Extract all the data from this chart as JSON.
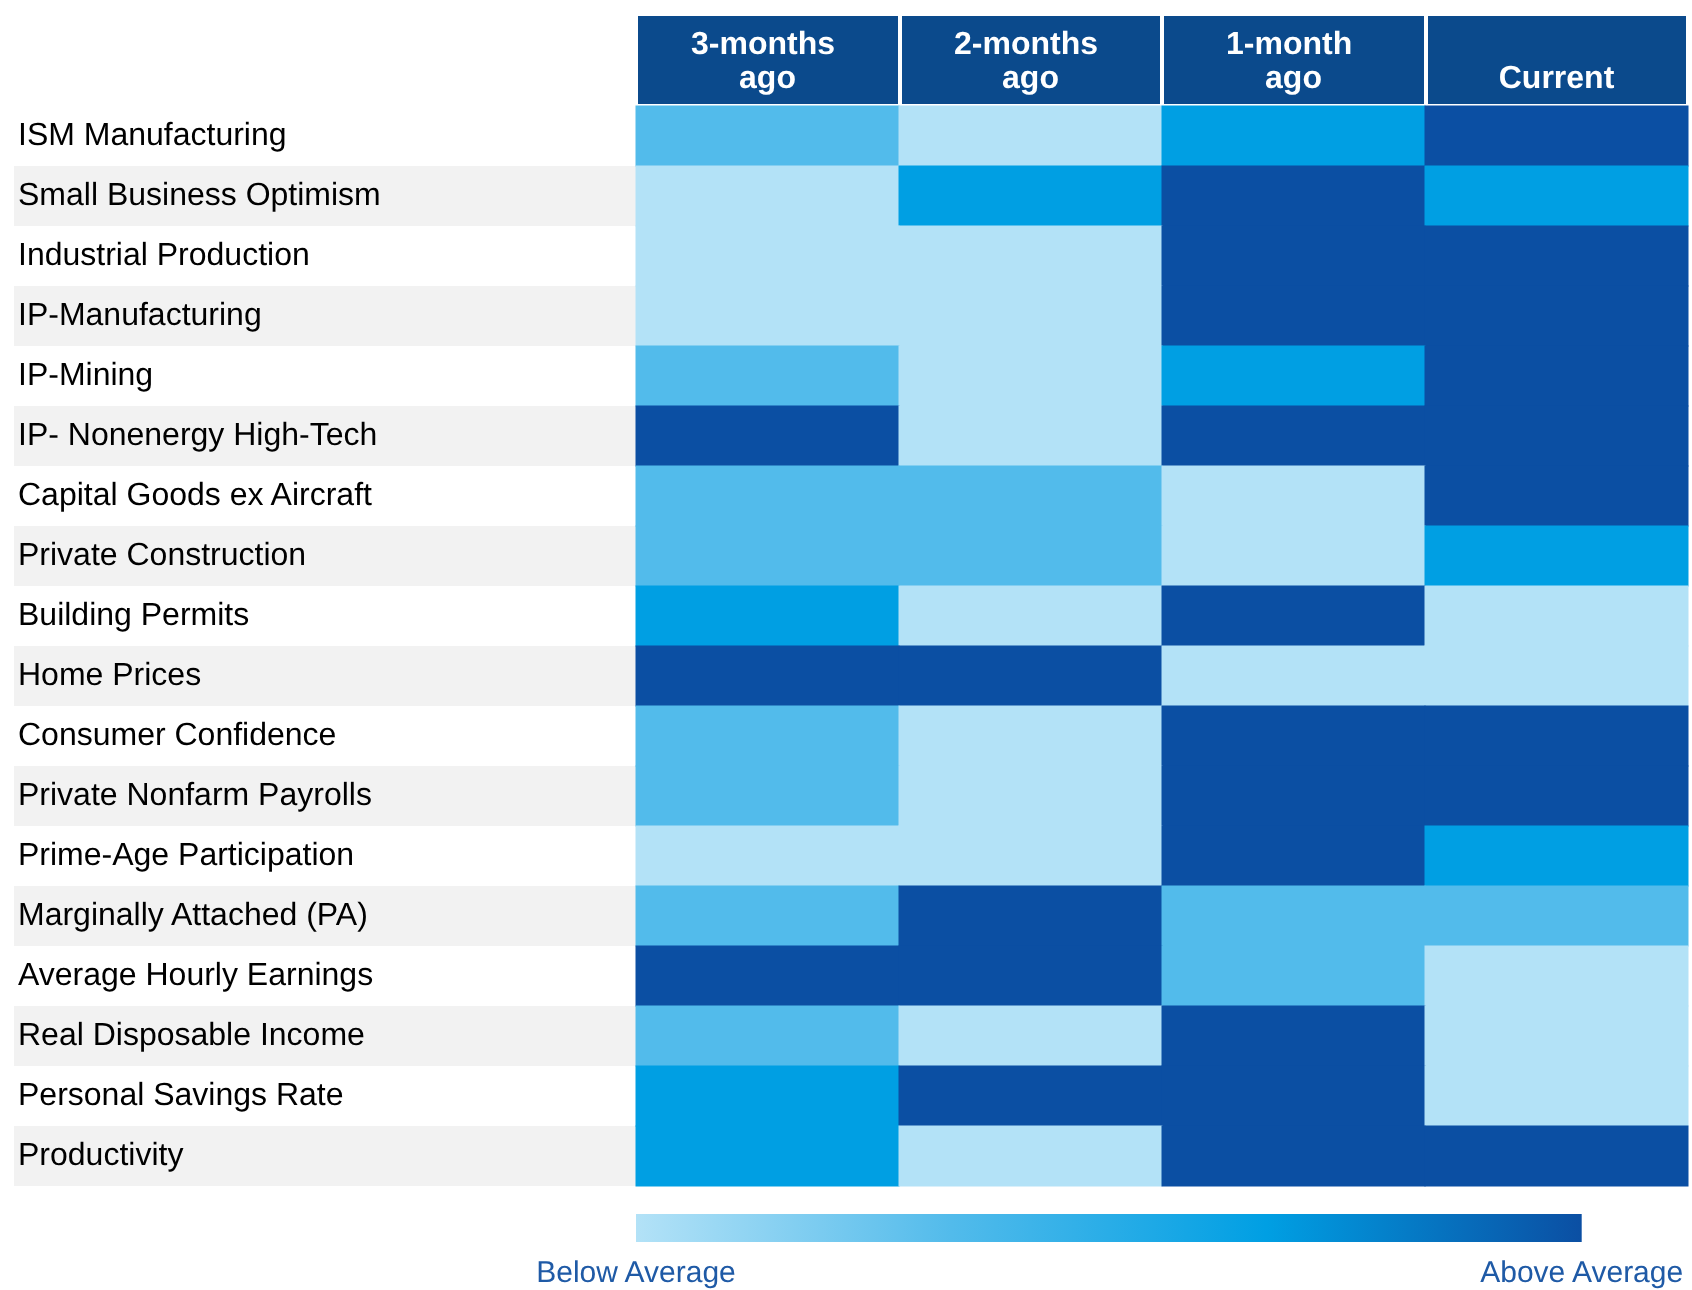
{
  "chart_data": {
    "type": "heatmap",
    "categories": [
      "3-months ago",
      "2-months ago",
      "1-month ago",
      "Current"
    ],
    "y_categories": [
      "ISM Manufacturing",
      "Small Business Optimism",
      "Industrial Production",
      "IP-Manufacturing",
      "IP-Mining",
      "IP- Nonenergy High-Tech",
      "Capital Goods ex Aircraft",
      "Private Construction",
      "Building Permits",
      "Home Prices",
      "Consumer Confidence",
      "Private Nonfarm Payrolls",
      "Prime-Age Participation",
      "Marginally Attached (PA)",
      "Average Hourly Earnings",
      "Real Disposable Income",
      "Personal Savings Rate",
      "Productivity"
    ],
    "cells": [
      [
        2,
        1,
        3,
        4
      ],
      [
        1,
        3,
        4,
        3
      ],
      [
        1,
        1,
        4,
        4
      ],
      [
        1,
        1,
        4,
        4
      ],
      [
        2,
        1,
        3,
        4
      ],
      [
        4,
        1,
        4,
        4
      ],
      [
        2,
        2,
        1,
        4
      ],
      [
        2,
        2,
        1,
        3
      ],
      [
        3,
        1,
        4,
        1
      ],
      [
        4,
        4,
        1,
        1
      ],
      [
        2,
        1,
        4,
        4
      ],
      [
        2,
        1,
        4,
        4
      ],
      [
        1,
        1,
        4,
        3
      ],
      [
        2,
        4,
        2,
        2
      ],
      [
        4,
        4,
        2,
        1
      ],
      [
        2,
        1,
        4,
        1
      ],
      [
        3,
        4,
        4,
        1
      ],
      [
        3,
        1,
        4,
        4
      ]
    ],
    "clim": [
      1,
      4
    ],
    "cticks": [
      {
        "value": 1,
        "label": "Below Average"
      },
      {
        "value": 4,
        "label": "Above Average"
      }
    ]
  }
}
